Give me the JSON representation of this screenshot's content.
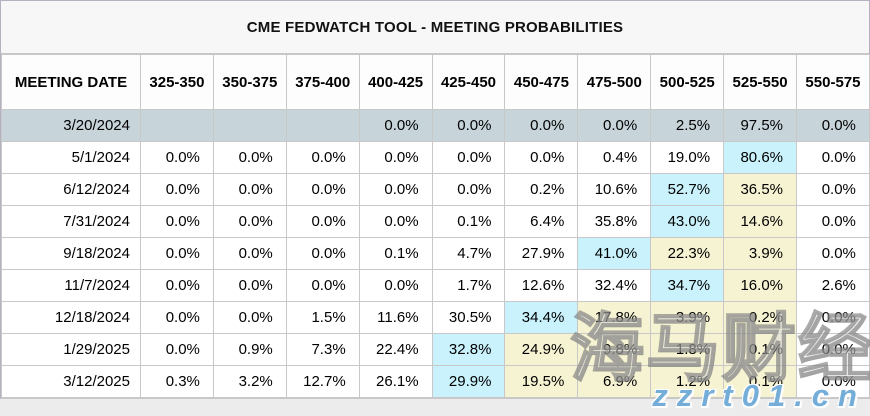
{
  "title": "CME FEDWATCH TOOL - MEETING PROBABILITIES",
  "table": {
    "columns": [
      "MEETING DATE",
      "325-350",
      "350-375",
      "375-400",
      "400-425",
      "425-450",
      "450-475",
      "475-500",
      "500-525",
      "525-550",
      "550-575"
    ],
    "rows": [
      {
        "date": "3/20/2024",
        "selected": true,
        "values": [
          "",
          "",
          "",
          "0.0%",
          "0.0%",
          "0.0%",
          "0.0%",
          "2.5%",
          "97.5%",
          "0.0%"
        ],
        "cell_styles": [
          "plain",
          "plain",
          "plain",
          "plain",
          "plain",
          "plain",
          "plain",
          "plain",
          "plain",
          "plain"
        ]
      },
      {
        "date": "5/1/2024",
        "selected": false,
        "values": [
          "0.0%",
          "0.0%",
          "0.0%",
          "0.0%",
          "0.0%",
          "0.0%",
          "0.4%",
          "19.0%",
          "80.6%",
          "0.0%"
        ],
        "cell_styles": [
          "plain",
          "plain",
          "plain",
          "plain",
          "plain",
          "plain",
          "plain",
          "plain",
          "cyan",
          "plain"
        ]
      },
      {
        "date": "6/12/2024",
        "selected": false,
        "values": [
          "0.0%",
          "0.0%",
          "0.0%",
          "0.0%",
          "0.0%",
          "0.2%",
          "10.6%",
          "52.7%",
          "36.5%",
          "0.0%"
        ],
        "cell_styles": [
          "plain",
          "plain",
          "plain",
          "plain",
          "plain",
          "plain",
          "plain",
          "cyan",
          "yellow",
          "plain"
        ]
      },
      {
        "date": "7/31/2024",
        "selected": false,
        "values": [
          "0.0%",
          "0.0%",
          "0.0%",
          "0.0%",
          "0.1%",
          "6.4%",
          "35.8%",
          "43.0%",
          "14.6%",
          "0.0%"
        ],
        "cell_styles": [
          "plain",
          "plain",
          "plain",
          "plain",
          "plain",
          "plain",
          "plain",
          "cyan",
          "yellow",
          "plain"
        ]
      },
      {
        "date": "9/18/2024",
        "selected": false,
        "values": [
          "0.0%",
          "0.0%",
          "0.0%",
          "0.1%",
          "4.7%",
          "27.9%",
          "41.0%",
          "22.3%",
          "3.9%",
          "0.0%"
        ],
        "cell_styles": [
          "plain",
          "plain",
          "plain",
          "plain",
          "plain",
          "plain",
          "cyan",
          "yellow",
          "yellow",
          "plain"
        ]
      },
      {
        "date": "11/7/2024",
        "selected": false,
        "values": [
          "0.0%",
          "0.0%",
          "0.0%",
          "0.0%",
          "1.7%",
          "12.6%",
          "32.4%",
          "34.7%",
          "16.0%",
          "2.6%"
        ],
        "cell_styles": [
          "plain",
          "plain",
          "plain",
          "plain",
          "plain",
          "plain",
          "plain",
          "cyan",
          "yellow",
          "plain"
        ]
      },
      {
        "date": "12/18/2024",
        "selected": false,
        "values": [
          "0.0%",
          "0.0%",
          "1.5%",
          "11.6%",
          "30.5%",
          "34.4%",
          "17.8%",
          "3.9%",
          "0.2%",
          "0.0%"
        ],
        "cell_styles": [
          "plain",
          "plain",
          "plain",
          "plain",
          "plain",
          "cyan",
          "yellow",
          "yellow",
          "yellow",
          "plain"
        ]
      },
      {
        "date": "1/29/2025",
        "selected": false,
        "values": [
          "0.0%",
          "0.9%",
          "7.3%",
          "22.4%",
          "32.8%",
          "24.9%",
          "9.8%",
          "1.8%",
          "0.1%",
          "0.0%"
        ],
        "cell_styles": [
          "plain",
          "plain",
          "plain",
          "plain",
          "cyan",
          "yellow",
          "yellow",
          "yellow",
          "yellow",
          "plain"
        ]
      },
      {
        "date": "3/12/2025",
        "selected": false,
        "values": [
          "0.3%",
          "3.2%",
          "12.7%",
          "26.1%",
          "29.9%",
          "19.5%",
          "6.9%",
          "1.2%",
          "0.1%",
          "0.0%"
        ],
        "cell_styles": [
          "plain",
          "plain",
          "plain",
          "plain",
          "cyan",
          "yellow",
          "yellow",
          "yellow",
          "yellow",
          "plain"
        ]
      }
    ]
  },
  "watermark": {
    "brand": "海马财经",
    "url": "zzrt01.cn"
  },
  "colors": {
    "selected_row": "#c7d4da",
    "cyan_highlight": "#c9f2fc",
    "yellow_highlight": "#f6f3d3",
    "grid_line": "#c8c8c8"
  }
}
